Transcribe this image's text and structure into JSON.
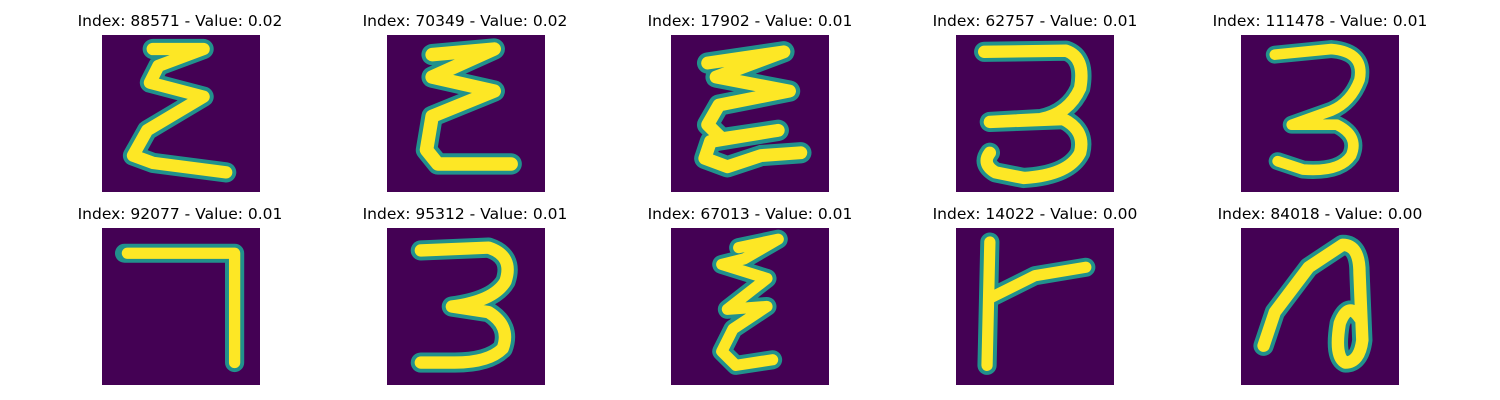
{
  "panels": [
    {
      "title": "Index: 88571 - Value: 0.02",
      "digit": "stacked-zigzag"
    },
    {
      "title": "Index: 70349 - Value: 0.02",
      "digit": "stacked-zigzag"
    },
    {
      "title": "Index: 17902 - Value: 0.01",
      "digit": "stacked-zigzag"
    },
    {
      "title": "Index: 62757 - Value: 0.01",
      "digit": "three"
    },
    {
      "title": "Index: 111478 - Value: 0.01",
      "digit": "three"
    },
    {
      "title": "Index: 92077 - Value: 0.01",
      "digit": "seven-corner"
    },
    {
      "title": "Index: 95312 - Value: 0.01",
      "digit": "three"
    },
    {
      "title": "Index: 67013 - Value: 0.01",
      "digit": "stacked-zigzag"
    },
    {
      "title": "Index: 14022 - Value: 0.00",
      "digit": "t-shape"
    },
    {
      "title": "Index: 84018 - Value: 0.00",
      "digit": "looped-stroke"
    }
  ],
  "colors": {
    "background": "#440154",
    "stroke": "#fde725",
    "edge": "#21918c"
  }
}
